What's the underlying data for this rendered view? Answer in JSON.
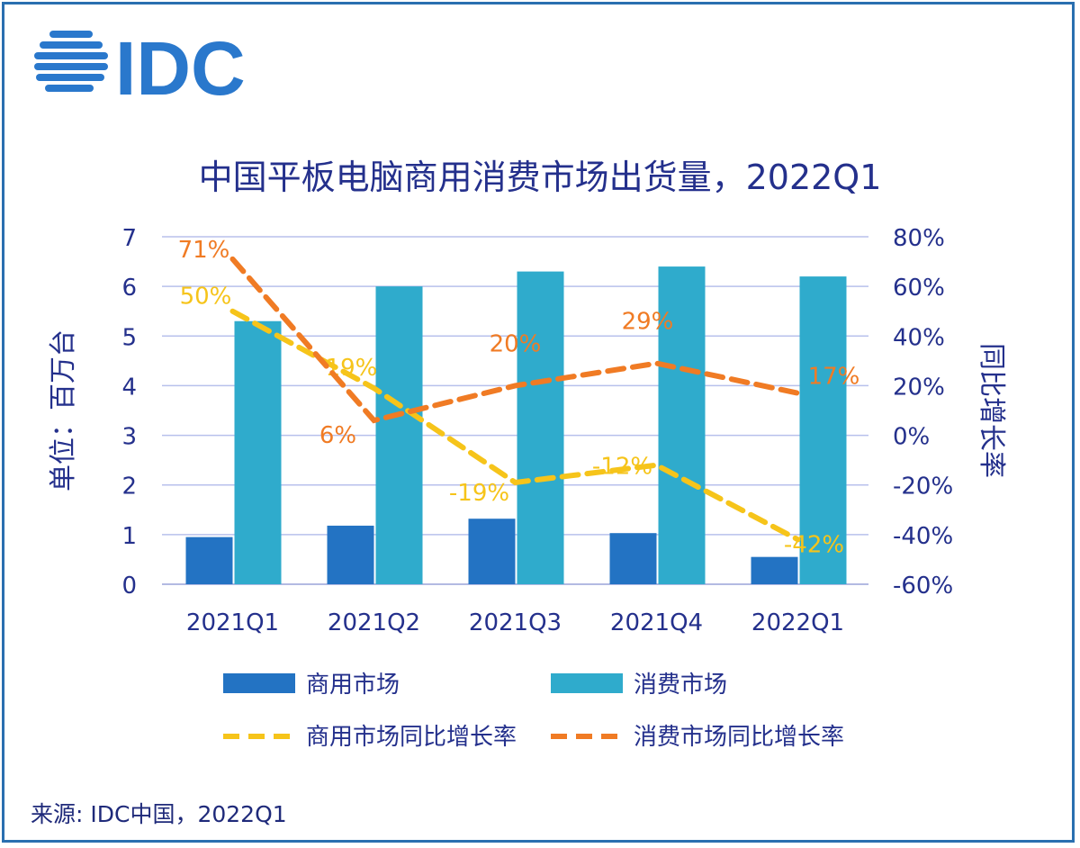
{
  "logo_text": "IDC",
  "source": "来源: IDC中国，2022Q1",
  "colors": {
    "commercial": "#2373c3",
    "consumer": "#2fabcc",
    "commercial_growth": "#f6c41a",
    "consumer_growth": "#f07b24",
    "text": "#24308c",
    "frame": "#2a6fb0"
  },
  "chart_data": {
    "type": "bar+line",
    "title": "中国平板电脑商用消费市场出货量，2022Q1",
    "ylabel": "单位：百万台",
    "y2label": "同比增长率",
    "categories": [
      "2021Q1",
      "2021Q2",
      "2021Q3",
      "2021Q4",
      "2022Q1"
    ],
    "ylim": [
      0,
      7
    ],
    "yticks": [
      "0",
      "1",
      "2",
      "3",
      "4",
      "5",
      "6",
      "7"
    ],
    "y2lim": [
      -60,
      80
    ],
    "y2ticks": [
      "-60%",
      "-40%",
      "-20%",
      "0%",
      "20%",
      "40%",
      "60%",
      "80%"
    ],
    "grid": true,
    "legend_position": "bottom",
    "bar_series": [
      {
        "name": "商用市场",
        "values": [
          0.95,
          1.18,
          1.32,
          1.03,
          0.55
        ]
      },
      {
        "name": "消费市场",
        "values": [
          5.3,
          6.0,
          6.3,
          6.4,
          6.2
        ]
      }
    ],
    "line_series": [
      {
        "name": "商用市场同比增长率",
        "values": [
          50,
          19,
          -19,
          -12,
          -42
        ],
        "labels": [
          "50%",
          "19%",
          "-19%",
          "-12%",
          "-42%"
        ]
      },
      {
        "name": "消费市场同比增长率",
        "values": [
          71,
          6,
          20,
          29,
          17
        ],
        "labels": [
          "71%",
          "6%",
          "20%",
          "29%",
          "17%"
        ]
      }
    ]
  }
}
